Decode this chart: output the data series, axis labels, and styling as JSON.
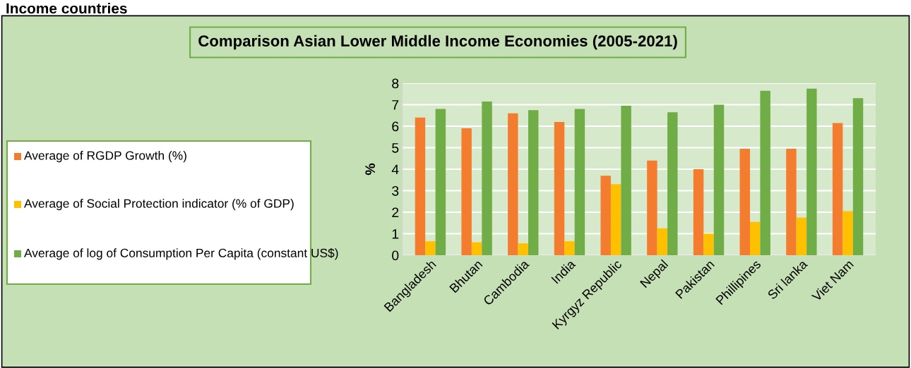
{
  "chart_data": {
    "type": "bar",
    "title": "Comparison Asian Lower Middle Income Economies (2005-2021)",
    "annotations": [
      "Income countries"
    ],
    "ylabel": "%",
    "categories": [
      "Bangladesh",
      "Bhutan",
      "Cambodia",
      "India",
      "Kyrgyz Republic",
      "Nepal",
      "Pakistan",
      "Phillipines",
      "Sri lanka",
      "Viet Nam"
    ],
    "series": [
      {
        "name": "Average of RGDP Growth (%)",
        "color": "#f47c2e",
        "values": [
          6.4,
          5.9,
          6.6,
          6.2,
          3.7,
          4.4,
          4.0,
          4.95,
          4.95,
          6.15
        ]
      },
      {
        "name": "Average of Social Protection indicator (% of GDP)",
        "color": "#ffc000",
        "values": [
          0.65,
          0.6,
          0.55,
          0.65,
          3.3,
          1.25,
          1.0,
          1.55,
          1.75,
          2.05
        ]
      },
      {
        "name": "Average of log of Consumption Per Capita (constant US$)",
        "color": "#70ad47",
        "values": [
          6.8,
          7.15,
          6.75,
          6.8,
          6.95,
          6.65,
          7.0,
          7.65,
          7.75,
          7.3
        ]
      }
    ],
    "ylim": [
      0,
      8
    ],
    "yticks": [
      0,
      1,
      2,
      3,
      4,
      5,
      6,
      7,
      8
    ],
    "grid": "y",
    "legend": "left"
  }
}
